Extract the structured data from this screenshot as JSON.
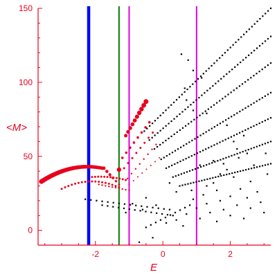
{
  "chart_data": {
    "type": "scatter",
    "title": "",
    "xlabel": "E",
    "ylabel": "<M>",
    "xlim": [
      -3.7,
      3.2
    ],
    "ylim": [
      -10,
      150
    ],
    "x_ticks": [
      -2,
      0,
      2
    ],
    "y_ticks": [
      0,
      50,
      100,
      150
    ],
    "grid": false,
    "legend": "none",
    "colors": {
      "axis": "#e8001c",
      "red_points": "#e8001c",
      "black_points": "#000000"
    },
    "vertical_lines": [
      {
        "x": -2.2,
        "color": "#0000ff",
        "width": "thick"
      },
      {
        "x": -1.3,
        "color": "#008000",
        "width": "thin"
      },
      {
        "x": -1.0,
        "color": "#e000e0",
        "width": "thin"
      },
      {
        "x": 1.0,
        "color": "#e000e0",
        "width": "thin"
      }
    ],
    "series": [
      {
        "color": "#e8001c",
        "curves": [
          {
            "from": [
              -3.6,
              33
            ],
            "peak": [
              -2.2,
              43
            ],
            "to": [
              -1.8,
              42
            ],
            "count": 34,
            "size": [
              3.5,
              2.5
            ]
          },
          {
            "from": [
              -1.75,
              42
            ],
            "to": [
              -1.3,
              31
            ],
            "count": 6,
            "size": [
              2.5,
              1.5
            ]
          },
          {
            "from": [
              -3.0,
              28
            ],
            "peak": [
              -2.2,
              33
            ],
            "to": [
              -1.3,
              29
            ],
            "count": 18,
            "size": [
              1.5,
              1.5
            ]
          },
          {
            "from": [
              -2.1,
              36
            ],
            "peak": [
              -1.6,
              36
            ],
            "to": [
              -1.1,
              34
            ],
            "count": 12,
            "size": [
              1.5,
              1.5
            ]
          },
          {
            "from": [
              -1.9,
              31
            ],
            "to": [
              -1.0,
              27
            ],
            "count": 10,
            "size": [
              1.2,
              1.2
            ]
          },
          {
            "from": [
              -1.1,
              64
            ],
            "to": [
              -0.5,
              87
            ],
            "count": 10,
            "size": [
              2.5,
              3.5
            ]
          },
          {
            "from": [
              -1.2,
              49
            ],
            "to": [
              -0.4,
              73
            ],
            "count": 8,
            "size": [
              1.8,
              1.8
            ]
          },
          {
            "from": [
              -1.15,
              42
            ],
            "to": [
              -0.3,
              66
            ],
            "count": 8,
            "size": [
              1.5,
              1.5
            ]
          },
          {
            "from": [
              -1.05,
              35
            ],
            "to": [
              -0.2,
              58
            ],
            "count": 8,
            "size": [
              1.2,
              1.2
            ]
          },
          {
            "from": [
              -1.0,
              31
            ],
            "to": [
              -0.1,
              49
            ],
            "count": 8,
            "size": [
              1.0,
              1.0
            ]
          }
        ],
        "points": [
          {
            "x": -1.3,
            "y": 41,
            "size": 3.2
          }
        ]
      },
      {
        "color": "#000000",
        "curves": [
          {
            "from": [
              -0.55,
              67
            ],
            "to": [
              3.2,
              150
            ],
            "count": 48,
            "size": [
              1.1,
              1.1
            ]
          },
          {
            "from": [
              -0.4,
              61
            ],
            "to": [
              3.2,
              131
            ],
            "count": 45,
            "size": [
              1.1,
              1.1
            ]
          },
          {
            "from": [
              -0.25,
              55
            ],
            "to": [
              3.2,
              113
            ],
            "count": 42,
            "size": [
              1.1,
              1.1
            ]
          },
          {
            "from": [
              -0.05,
              48
            ],
            "to": [
              3.2,
              93
            ],
            "count": 40,
            "size": [
              1.1,
              1.1
            ]
          },
          {
            "from": [
              0.1,
              42
            ],
            "to": [
              3.2,
              76
            ],
            "count": 38,
            "size": [
              1.1,
              1.1
            ]
          },
          {
            "from": [
              0.3,
              36
            ],
            "to": [
              3.2,
              60
            ],
            "count": 36,
            "size": [
              1.1,
              1.1
            ]
          },
          {
            "from": [
              0.5,
              30
            ],
            "to": [
              3.2,
              45
            ],
            "count": 34,
            "size": [
              1.1,
              1.1
            ]
          },
          {
            "from": [
              -2.3,
              21
            ],
            "to": [
              0.2,
              14
            ],
            "count": 16,
            "size": [
              1.1,
              1.1
            ]
          },
          {
            "from": [
              -1.8,
              17
            ],
            "to": [
              0.3,
              10
            ],
            "count": 14,
            "size": [
              1.1,
              1.1
            ]
          },
          {
            "from": [
              -0.5,
              2
            ],
            "to": [
              0.8,
              17
            ],
            "count": 10,
            "size": [
              1.1,
              1.1
            ]
          }
        ],
        "points": [
          {
            "x": 0.55,
            "y": 119,
            "size": 1.1
          },
          {
            "x": 0.75,
            "y": 115,
            "size": 1.1
          },
          {
            "x": 0.9,
            "y": 108,
            "size": 1.1
          },
          {
            "x": 1.15,
            "y": 103,
            "size": 1.1
          },
          {
            "x": 0.65,
            "y": 96,
            "size": 1.1
          },
          {
            "x": 0.7,
            "y": 88,
            "size": 1.1
          },
          {
            "x": 0.9,
            "y": 81,
            "size": 1.1
          },
          {
            "x": 1.3,
            "y": 79,
            "size": 1.1
          },
          {
            "x": 1.9,
            "y": 71,
            "size": 1.1
          },
          {
            "x": 2.4,
            "y": 64,
            "size": 1.1
          },
          {
            "x": 2.1,
            "y": 60,
            "size": 1.1
          },
          {
            "x": 2.2,
            "y": 55,
            "size": 1.1
          },
          {
            "x": 2.5,
            "y": 52,
            "size": 1.1
          },
          {
            "x": 2.25,
            "y": 49,
            "size": 1.1
          },
          {
            "x": 1.8,
            "y": 45,
            "size": 1.1
          },
          {
            "x": 1.9,
            "y": 41,
            "size": 1.1
          },
          {
            "x": 1.7,
            "y": 38,
            "size": 1.1
          },
          {
            "x": 2.1,
            "y": 36,
            "size": 1.1
          },
          {
            "x": 2.6,
            "y": 33,
            "size": 1.1
          },
          {
            "x": 1.5,
            "y": 32,
            "size": 1.1
          },
          {
            "x": 1.3,
            "y": 30,
            "size": 1.1
          },
          {
            "x": 2.3,
            "y": 28,
            "size": 1.1
          },
          {
            "x": 1.6,
            "y": 27,
            "size": 1.1
          },
          {
            "x": 2.8,
            "y": 26,
            "size": 1.1
          },
          {
            "x": 1.2,
            "y": 24,
            "size": 1.1
          },
          {
            "x": 2.0,
            "y": 23,
            "size": 1.1
          },
          {
            "x": 2.5,
            "y": 22,
            "size": 1.1
          },
          {
            "x": 0.9,
            "y": 21,
            "size": 1.1
          },
          {
            "x": 1.7,
            "y": 20,
            "size": 1.1
          },
          {
            "x": 2.9,
            "y": 19,
            "size": 1.1
          },
          {
            "x": 1.3,
            "y": 18,
            "size": 1.1
          },
          {
            "x": 2.2,
            "y": 17,
            "size": 1.1
          },
          {
            "x": 1.0,
            "y": 15,
            "size": 1.1
          },
          {
            "x": 2.6,
            "y": 15,
            "size": 1.1
          },
          {
            "x": 1.8,
            "y": 14,
            "size": 1.1
          },
          {
            "x": 1.4,
            "y": 12,
            "size": 1.1
          },
          {
            "x": 3.0,
            "y": 12,
            "size": 1.1
          },
          {
            "x": 0.7,
            "y": 11,
            "size": 1.1
          },
          {
            "x": 2.0,
            "y": 10,
            "size": 1.1
          },
          {
            "x": 1.1,
            "y": 8,
            "size": 1.1
          },
          {
            "x": 0.4,
            "y": 7,
            "size": 1.1
          },
          {
            "x": 2.4,
            "y": 8,
            "size": 1.1
          },
          {
            "x": 0.1,
            "y": 5,
            "size": 1.1
          },
          {
            "x": 1.6,
            "y": 6,
            "size": 1.1
          },
          {
            "x": 0.6,
            "y": 3,
            "size": 1.1
          },
          {
            "x": -0.3,
            "y": -5,
            "size": 1.1
          },
          {
            "x": -0.7,
            "y": -8,
            "size": 1.1
          },
          {
            "x": 3.1,
            "y": 38,
            "size": 1.1
          },
          {
            "x": 3.05,
            "y": 52,
            "size": 1.1
          },
          {
            "x": 2.7,
            "y": 44,
            "size": 1.1
          },
          {
            "x": 1.1,
            "y": 44,
            "size": 1.1
          },
          {
            "x": 0.4,
            "y": 26,
            "size": 1.1
          },
          {
            "x": 0.2,
            "y": 32,
            "size": 1.1
          },
          {
            "x": -0.5,
            "y": 22,
            "size": 1.1
          },
          {
            "x": -0.9,
            "y": 18,
            "size": 1.1
          },
          {
            "x": -0.2,
            "y": 17,
            "size": 1.1
          },
          {
            "x": -0.6,
            "y": 14,
            "size": 1.1
          },
          {
            "x": -1.1,
            "y": 12,
            "size": 1.1
          },
          {
            "x": 0.85,
            "y": 27,
            "size": 1.1
          },
          {
            "x": 1.5,
            "y": 47,
            "size": 1.1
          }
        ]
      }
    ]
  }
}
